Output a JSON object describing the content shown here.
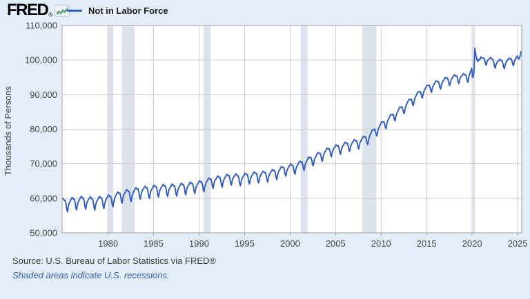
{
  "header": {
    "logo": "FRED",
    "logo_registered": "®",
    "legend_label": "Not in Labor Force"
  },
  "footer": {
    "source": "Source: U.S. Bureau of Labor Statistics via FRED®",
    "recession_note": "Shaded areas indicate U.S. recessions."
  },
  "colors": {
    "background": "#e4eefa",
    "plot_background": "#ffffff",
    "recession_band": "#dde3ed",
    "grid": "#cccccc",
    "axis_border": "#9e9e9e",
    "line": "#2f5bc7",
    "note_blue": "#2e5cb8",
    "logo_icon_green": "#3f9c35",
    "logo_icon_gray": "#7b93a8"
  },
  "chart_data": {
    "type": "line",
    "title": "Not in Labor Force",
    "ylabel": "Thousands of Persons",
    "ylim": [
      50000,
      110000
    ],
    "yticks": [
      50000,
      60000,
      70000,
      80000,
      90000,
      100000,
      110000
    ],
    "ytick_labels": [
      "50,000",
      "60,000",
      "70,000",
      "80,000",
      "90,000",
      "100,000",
      "110,000"
    ],
    "xticks": [
      1980,
      1985,
      1990,
      1995,
      2000,
      2005,
      2010,
      2015,
      2020,
      2025
    ],
    "x_domain": [
      1974.95,
      2025.45
    ],
    "frequency": "monthly",
    "grid": true,
    "legend_position": "top-left",
    "series": [
      {
        "name": "Not in Labor Force",
        "color": "#2f5bc7",
        "annual_means_start_year": 1975,
        "annual_means": [
          58600,
          59100,
          59300,
          59000,
          59400,
          59900,
          61000,
          61400,
          62100,
          62300,
          62700,
          62800,
          62900,
          63300,
          63600,
          64100,
          65100,
          65400,
          66000,
          65800,
          66300,
          66600,
          66800,
          67500,
          68500,
          69000,
          70100,
          71400,
          72700,
          74000,
          74700,
          75500,
          76200,
          77400,
          79900,
          82000,
          84200,
          86300,
          88600,
          90800,
          92500,
          93400,
          94400,
          95000,
          95200,
          99000,
          100300,
          99400,
          99200,
          100000,
          101200
        ],
        "seasonal_pattern": [
          1100,
          900,
          600,
          650,
          -100,
          -1400,
          -2000,
          -900,
          -200,
          150,
          450,
          750
        ],
        "seasonal_amp_start": 1.25,
        "seasonal_amp_end": 0.85,
        "monthly_overrides": {
          "2020": [
            95000,
            95200,
            96800,
            103400,
            102100,
            100800,
            100000,
            99600,
            100200,
            100000,
            100300,
            100900
          ],
          "2025": [
            100600,
            100300,
            100700,
            101300,
            102400
          ]
        }
      }
    ],
    "recessions": [
      [
        1980.0,
        1980.58
      ],
      [
        1981.5,
        1982.92
      ],
      [
        1990.5,
        1991.25
      ],
      [
        2001.17,
        2001.92
      ],
      [
        2007.92,
        2009.5
      ],
      [
        2020.08,
        2020.33
      ]
    ],
    "key_points": {
      "start_value_1975": 58600,
      "value_2000": 69000,
      "pre_covid_2019": 95200,
      "covid_spike_apr_2020": 103400,
      "end_value_2025": 102400
    }
  }
}
